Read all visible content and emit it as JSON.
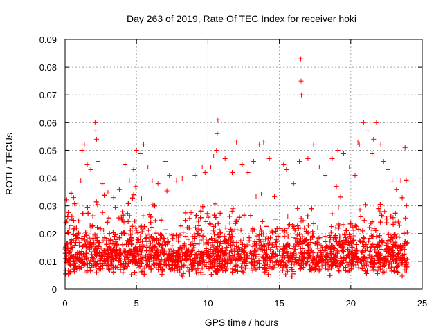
{
  "chart_data": {
    "type": "scatter",
    "title": "Day 263 of 2019, Rate Of TEC Index for receiver hoki",
    "xlabel": "GPS time / hours",
    "ylabel": "ROTI / TECUs",
    "xlim": [
      0,
      25
    ],
    "ylim": [
      0,
      0.09
    ],
    "xticks": [
      0,
      5,
      10,
      15,
      20,
      25
    ],
    "xtick_labels": [
      "0",
      "5",
      "10",
      "15",
      "20",
      "25"
    ],
    "yticks": [
      0,
      0.01,
      0.02,
      0.03,
      0.04,
      0.05,
      0.06,
      0.07,
      0.08,
      0.09
    ],
    "ytick_labels": [
      "0",
      "0.01",
      "0.02",
      "0.03",
      "0.04",
      "0.05",
      "0.06",
      "0.07",
      "0.08",
      "0.09"
    ],
    "grid": true,
    "marker": "+",
    "color": "#ff0000",
    "data_range_x": [
      0,
      24
    ],
    "series": [
      {
        "name": "ROTI",
        "points": [
          [
            0.05,
            0.024
          ],
          [
            0.1,
            0.016
          ],
          [
            0.3,
            0.022
          ],
          [
            0.6,
            0.033
          ],
          [
            0.9,
            0.031
          ],
          [
            1.1,
            0.039
          ],
          [
            1.2,
            0.05
          ],
          [
            1.35,
            0.052
          ],
          [
            1.55,
            0.045
          ],
          [
            1.8,
            0.043
          ],
          [
            2.1,
            0.06
          ],
          [
            2.15,
            0.057
          ],
          [
            2.2,
            0.054
          ],
          [
            2.3,
            0.046
          ],
          [
            2.6,
            0.038
          ],
          [
            3.0,
            0.035
          ],
          [
            3.4,
            0.033
          ],
          [
            3.8,
            0.036
          ],
          [
            4.2,
            0.045
          ],
          [
            4.5,
            0.039
          ],
          [
            4.8,
            0.043
          ],
          [
            5.0,
            0.05
          ],
          [
            5.3,
            0.049
          ],
          [
            5.5,
            0.052
          ],
          [
            5.8,
            0.044
          ],
          [
            6.1,
            0.039
          ],
          [
            6.5,
            0.038
          ],
          [
            7.0,
            0.046
          ],
          [
            7.3,
            0.041
          ],
          [
            7.8,
            0.039
          ],
          [
            8.2,
            0.04
          ],
          [
            8.6,
            0.044
          ],
          [
            9.1,
            0.041
          ],
          [
            9.6,
            0.044
          ],
          [
            9.8,
            0.042
          ],
          [
            10.2,
            0.044
          ],
          [
            10.4,
            0.048
          ],
          [
            10.6,
            0.05
          ],
          [
            10.65,
            0.056
          ],
          [
            10.7,
            0.061
          ],
          [
            11.2,
            0.047
          ],
          [
            11.7,
            0.042
          ],
          [
            12.0,
            0.053
          ],
          [
            12.4,
            0.045
          ],
          [
            12.8,
            0.042
          ],
          [
            13.2,
            0.046
          ],
          [
            13.6,
            0.052
          ],
          [
            13.9,
            0.053
          ],
          [
            14.3,
            0.047
          ],
          [
            14.7,
            0.04
          ],
          [
            15.3,
            0.045
          ],
          [
            15.5,
            0.043
          ],
          [
            16.0,
            0.038
          ],
          [
            16.4,
            0.046
          ],
          [
            16.5,
            0.083
          ],
          [
            16.52,
            0.075
          ],
          [
            16.55,
            0.07
          ],
          [
            17.0,
            0.047
          ],
          [
            17.4,
            0.052
          ],
          [
            17.8,
            0.044
          ],
          [
            18.2,
            0.041
          ],
          [
            18.7,
            0.047
          ],
          [
            19.1,
            0.05
          ],
          [
            19.5,
            0.049
          ],
          [
            19.9,
            0.044
          ],
          [
            20.3,
            0.041
          ],
          [
            20.5,
            0.053
          ],
          [
            20.6,
            0.052
          ],
          [
            20.9,
            0.06
          ],
          [
            21.2,
            0.057
          ],
          [
            21.5,
            0.049
          ],
          [
            21.6,
            0.054
          ],
          [
            21.8,
            0.06
          ],
          [
            22.1,
            0.052
          ],
          [
            22.3,
            0.046
          ],
          [
            22.6,
            0.043
          ],
          [
            22.9,
            0.039
          ],
          [
            23.2,
            0.036
          ],
          [
            23.5,
            0.039
          ],
          [
            23.8,
            0.051
          ],
          [
            23.9,
            0.03
          ]
        ]
      }
    ]
  }
}
